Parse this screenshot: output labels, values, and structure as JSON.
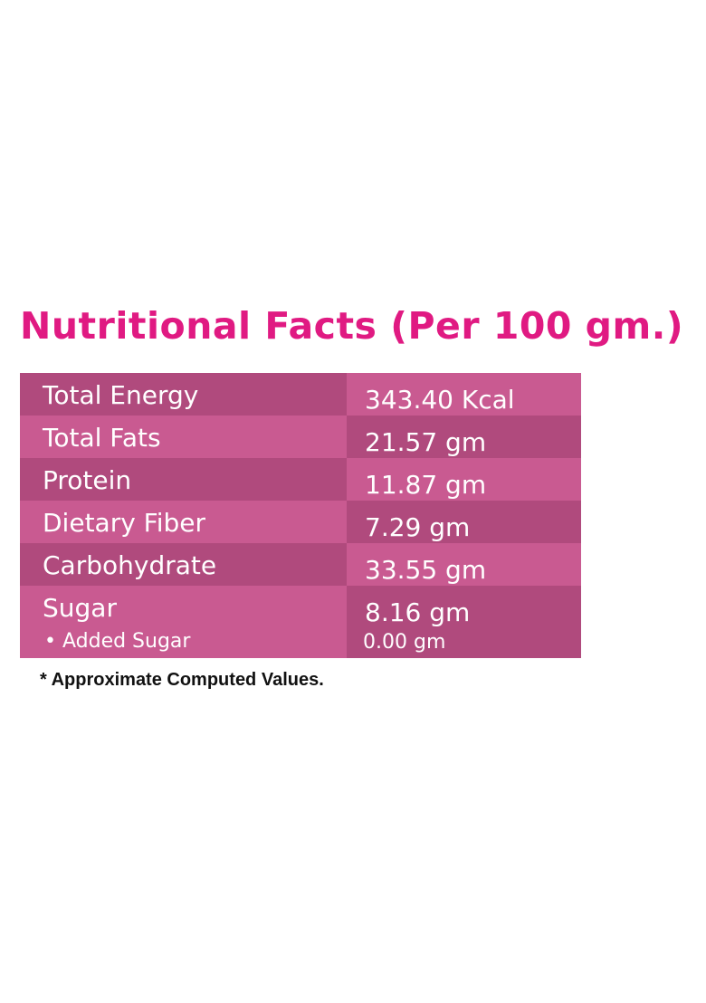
{
  "header": {
    "title": "Nutritional Facts (Per 100 gm.)"
  },
  "table": {
    "rows": [
      [
        "Total Energy",
        "343.40 Kcal"
      ],
      [
        "Total Fats",
        "21.57 gm"
      ],
      [
        "Protein",
        "11.87 gm"
      ],
      [
        "Dietary Fiber",
        "7.29 gm"
      ],
      [
        "Carbohydrate",
        "33.55 gm"
      ],
      [
        "Sugar",
        "8.16 gm"
      ]
    ],
    "sub_row": [
      "• Added Sugar",
      "0.00 gm"
    ]
  },
  "footnote": "* Approximate Computed Values."
}
